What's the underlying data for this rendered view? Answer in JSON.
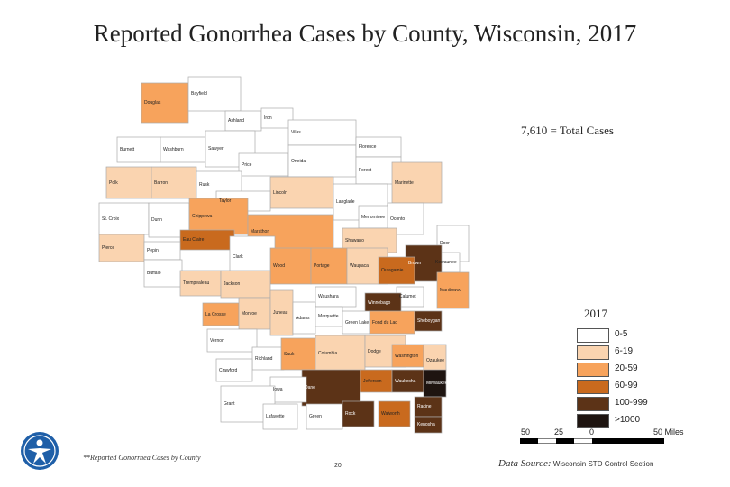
{
  "title": "Reported Gonorrhea Cases by County, Wisconsin, 2017",
  "total_cases": "7,610 = Total Cases",
  "legend": {
    "year": "2017",
    "items": [
      {
        "label": "0-5",
        "color": "#ffffff"
      },
      {
        "label": "6-19",
        "color": "#fad4b0"
      },
      {
        "label": "20-59",
        "color": "#f7a35c"
      },
      {
        "label": "60-99",
        "color": "#c96a1e"
      },
      {
        "label": "100-999",
        "color": "#5c3317"
      },
      {
        "label": ">1000",
        "color": "#1e1410"
      }
    ]
  },
  "scale": {
    "labels": [
      "50",
      "25",
      "0",
      "50 Miles"
    ]
  },
  "footnote": "**Reported Gonorrhea Cases by County",
  "page_number": "20",
  "data_source_label": "Data Source:",
  "data_source_text": "Wisconsin STD Control Section",
  "counties": [
    {
      "name": "Douglas",
      "category": "20-59"
    },
    {
      "name": "Bayfield",
      "category": "0-5"
    },
    {
      "name": "Ashland",
      "category": "0-5"
    },
    {
      "name": "Iron",
      "category": "0-5"
    },
    {
      "name": "Vilas",
      "category": "0-5"
    },
    {
      "name": "Burnett",
      "category": "0-5"
    },
    {
      "name": "Washburn",
      "category": "0-5"
    },
    {
      "name": "Sawyer",
      "category": "0-5"
    },
    {
      "name": "Price",
      "category": "0-5"
    },
    {
      "name": "Oneida",
      "category": "0-5"
    },
    {
      "name": "Florence",
      "category": "0-5"
    },
    {
      "name": "Forest",
      "category": "0-5"
    },
    {
      "name": "Polk",
      "category": "6-19"
    },
    {
      "name": "Barron",
      "category": "6-19"
    },
    {
      "name": "Rusk",
      "category": "0-5"
    },
    {
      "name": "Marinette",
      "category": "6-19"
    },
    {
      "name": "Lincoln",
      "category": "6-19"
    },
    {
      "name": "Taylor",
      "category": "0-5"
    },
    {
      "name": "Langlade",
      "category": "0-5"
    },
    {
      "name": "St. Croix",
      "category": "0-5"
    },
    {
      "name": "Dunn",
      "category": "0-5"
    },
    {
      "name": "Chippewa",
      "category": "20-59"
    },
    {
      "name": "Menominee",
      "category": "0-5"
    },
    {
      "name": "Oconto",
      "category": "0-5"
    },
    {
      "name": "Marathon",
      "category": "20-59"
    },
    {
      "name": "Shawano",
      "category": "6-19"
    },
    {
      "name": "Door",
      "category": "0-5"
    },
    {
      "name": "Pierce",
      "category": "6-19"
    },
    {
      "name": "Eau Claire",
      "category": "60-99"
    },
    {
      "name": "Clark",
      "category": "0-5"
    },
    {
      "name": "Pepin",
      "category": "0-5"
    },
    {
      "name": "Kewaunee",
      "category": "0-5"
    },
    {
      "name": "Brown",
      "category": "100-999"
    },
    {
      "name": "Wood",
      "category": "20-59"
    },
    {
      "name": "Portage",
      "category": "20-59"
    },
    {
      "name": "Waupaca",
      "category": "6-19"
    },
    {
      "name": "Outagamie",
      "category": "60-99"
    },
    {
      "name": "Buffalo",
      "category": "0-5"
    },
    {
      "name": "Trempealeau",
      "category": "6-19"
    },
    {
      "name": "Jackson",
      "category": "6-19"
    },
    {
      "name": "Manitowoc",
      "category": "20-59"
    },
    {
      "name": "Waushara",
      "category": "0-5"
    },
    {
      "name": "Calumet",
      "category": "0-5"
    },
    {
      "name": "Winnebago",
      "category": "100-999"
    },
    {
      "name": "La Crosse",
      "category": "20-59"
    },
    {
      "name": "Monroe",
      "category": "6-19"
    },
    {
      "name": "Juneau",
      "category": "6-19"
    },
    {
      "name": "Adams",
      "category": "0-5"
    },
    {
      "name": "Marquette",
      "category": "0-5"
    },
    {
      "name": "Green Lake",
      "category": "0-5"
    },
    {
      "name": "Fond du Lac",
      "category": "20-59"
    },
    {
      "name": "Sheboygan",
      "category": "100-999"
    },
    {
      "name": "Vernon",
      "category": "0-5"
    },
    {
      "name": "Richland",
      "category": "0-5"
    },
    {
      "name": "Sauk",
      "category": "20-59"
    },
    {
      "name": "Columbia",
      "category": "6-19"
    },
    {
      "name": "Dodge",
      "category": "6-19"
    },
    {
      "name": "Washington",
      "category": "20-59"
    },
    {
      "name": "Ozaukee",
      "category": "6-19"
    },
    {
      "name": "Crawford",
      "category": "0-5"
    },
    {
      "name": "Dane",
      "category": "100-999"
    },
    {
      "name": "Jefferson",
      "category": "60-99"
    },
    {
      "name": "Waukesha",
      "category": "100-999"
    },
    {
      "name": "Milwaukee",
      "category": ">1000"
    },
    {
      "name": "Iowa",
      "category": "0-5"
    },
    {
      "name": "Grant",
      "category": "0-5"
    },
    {
      "name": "Lafayette",
      "category": "0-5"
    },
    {
      "name": "Green",
      "category": "0-5"
    },
    {
      "name": "Rock",
      "category": "100-999"
    },
    {
      "name": "Walworth",
      "category": "60-99"
    },
    {
      "name": "Racine",
      "category": "100-999"
    },
    {
      "name": "Kenosha",
      "category": "100-999"
    }
  ]
}
